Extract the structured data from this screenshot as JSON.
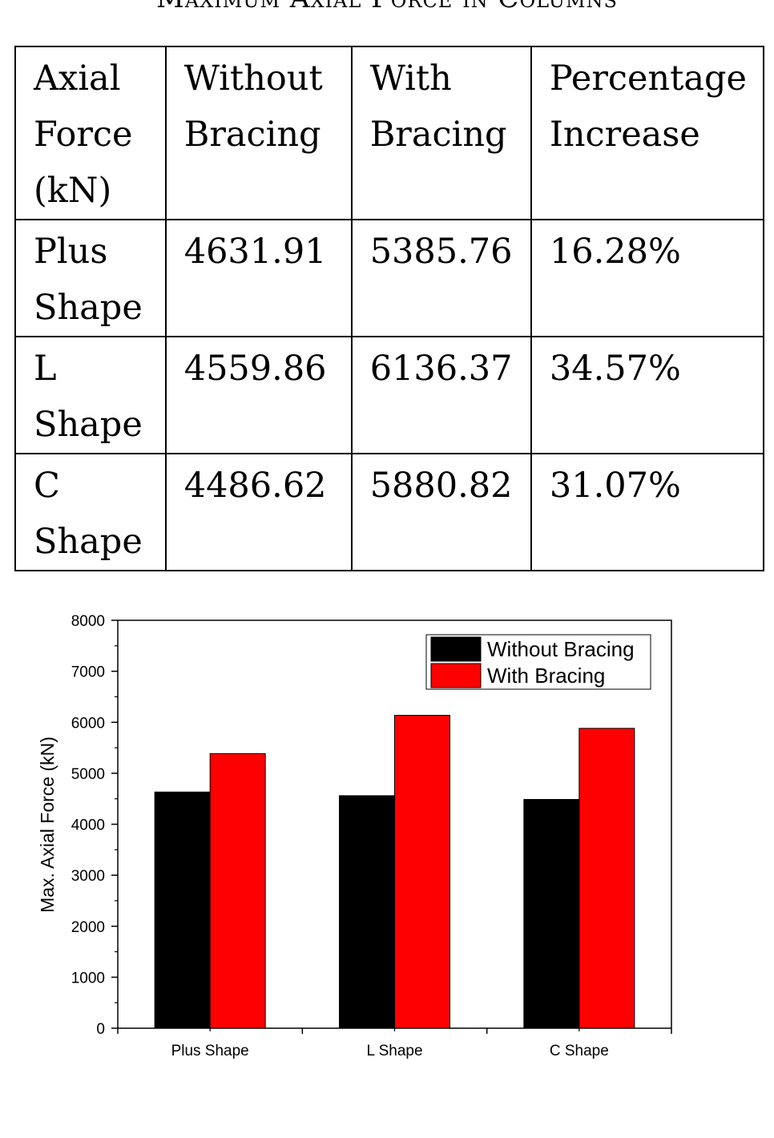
{
  "table": {
    "title": "Maximum Axial Force in Columns",
    "header": {
      "col0": [
        "Axial",
        "Force",
        "(kN)"
      ],
      "col1": [
        "Without",
        "Bracing"
      ],
      "col2": [
        "With",
        "Bracing"
      ],
      "col3": [
        "Percentage",
        "Increase"
      ]
    },
    "rows": [
      {
        "label": [
          "Plus",
          "Shape"
        ],
        "without": "4631.91",
        "with": "5385.76",
        "increase": "16.28%"
      },
      {
        "label": [
          "L",
          "Shape"
        ],
        "without": "4559.86",
        "with": "6136.37",
        "increase": "34.57%"
      },
      {
        "label": [
          "C",
          "Shape"
        ],
        "without": "4486.62",
        "with": "5880.82",
        "increase": "31.07%"
      }
    ]
  },
  "chart_data": {
    "type": "bar",
    "categories": [
      "Plus Shape",
      "L Shape",
      "C Shape"
    ],
    "series": [
      {
        "name": "Without Bracing",
        "values": [
          4631.91,
          4559.86,
          4486.62
        ],
        "color": "#000000"
      },
      {
        "name": "With Bracing",
        "values": [
          5385.76,
          6136.37,
          5880.82
        ],
        "color": "#ff0000"
      }
    ],
    "ylabel": "Max. Axial Force (kN)",
    "xlabel": "",
    "ylim": [
      0,
      8000
    ],
    "yticks": [
      0,
      1000,
      2000,
      3000,
      4000,
      5000,
      6000,
      7000,
      8000
    ],
    "grid": false,
    "legend": "top-right"
  }
}
